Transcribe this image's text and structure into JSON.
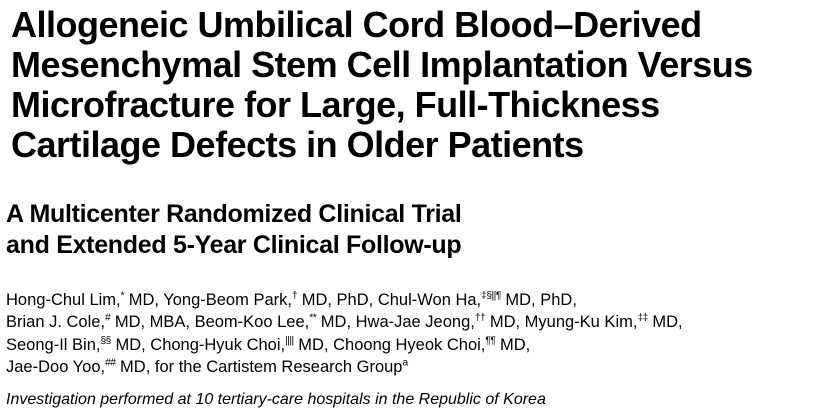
{
  "page": {
    "background_color": "#ffffff",
    "text_color": "#000000"
  },
  "article": {
    "title_lines": [
      "Allogeneic Umbilical Cord Blood–Derived",
      "Mesenchymal Stem Cell Implantation Versus",
      "Microfracture for Large, Full-Thickness",
      "Cartilage Defects in Older Patients"
    ],
    "subtitle_lines": [
      "A Multicenter Randomized Clinical Trial",
      "and Extended 5-Year Clinical Follow-up"
    ],
    "author_lines": [
      [
        {
          "t": "Hong-Chul Lim,"
        },
        {
          "s": "*"
        },
        {
          "t": " MD, Yong-Beom Park,"
        },
        {
          "s": "†"
        },
        {
          "t": " MD, PhD, Chul-Won Ha,"
        },
        {
          "s": "‡§||¶"
        },
        {
          "t": " MD, PhD,"
        }
      ],
      [
        {
          "t": "Brian J. Cole,"
        },
        {
          "s": "#"
        },
        {
          "t": " MD, MBA, Beom-Koo Lee,"
        },
        {
          "s": "**"
        },
        {
          "t": " MD, Hwa-Jae Jeong,"
        },
        {
          "s": "††"
        },
        {
          "t": " MD, Myung-Ku Kim,"
        },
        {
          "s": "‡‡"
        },
        {
          "t": " MD,"
        }
      ],
      [
        {
          "t": "Seong-Il Bin,"
        },
        {
          "s": "§§"
        },
        {
          "t": " MD, Chong-Hyuk Choi,"
        },
        {
          "s": "||||"
        },
        {
          "t": " MD, Choong Hyeok Choi,"
        },
        {
          "s": "¶¶"
        },
        {
          "t": " MD,"
        }
      ],
      [
        {
          "t": "Jae-Doo Yoo,"
        },
        {
          "s": "##"
        },
        {
          "t": " MD, for the Cartistem Research Group"
        },
        {
          "s": "a"
        }
      ]
    ],
    "investigation_note": "Investigation performed at 10 tertiary-care hospitals in the Republic of Korea"
  }
}
